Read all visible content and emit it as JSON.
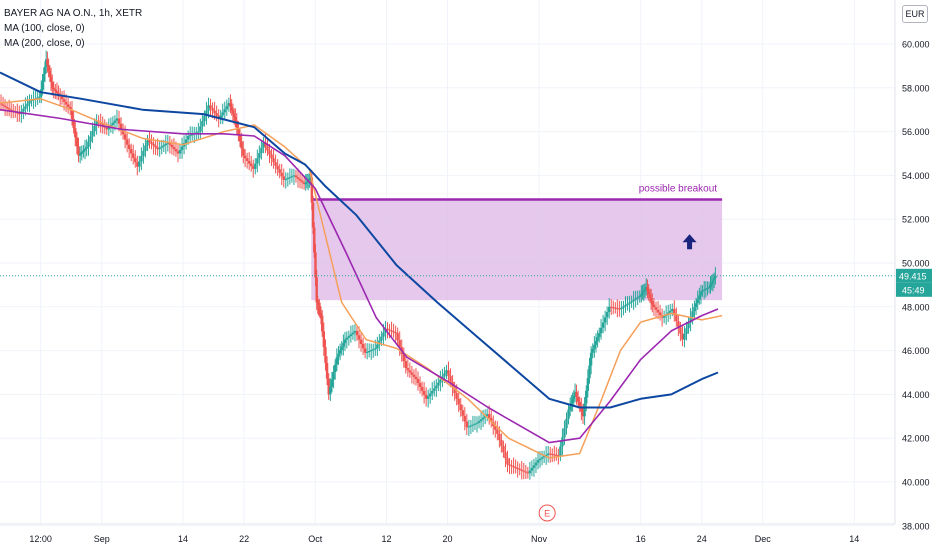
{
  "legend": {
    "symbol": "BAYER AG NA O.N., 1h, XETR",
    "ma100": "MA (100, close, 0)",
    "ma200": "MA (200, close, 0)"
  },
  "currency_button": "EUR",
  "chart_data": {
    "type": "line",
    "title": "BAYER AG NA O.N., 1h, XETR",
    "y_ticks": [
      "38.000",
      "40.000",
      "42.000",
      "44.000",
      "46.000",
      "48.000",
      "50.000",
      "52.000",
      "54.000",
      "56.000",
      "58.000",
      "60.000"
    ],
    "ylim": [
      38,
      61
    ],
    "x_ticks": [
      {
        "t": 2,
        "label": "12:00"
      },
      {
        "t": 5,
        "label": "Sep"
      },
      {
        "t": 9,
        "label": "14"
      },
      {
        "t": 12,
        "label": "22"
      },
      {
        "t": 15.5,
        "label": "Oct"
      },
      {
        "t": 19,
        "label": "12"
      },
      {
        "t": 22,
        "label": "20"
      },
      {
        "t": 26.5,
        "label": "Nov"
      },
      {
        "t": 31.5,
        "label": "16"
      },
      {
        "t": 34.5,
        "label": "24"
      },
      {
        "t": 37.5,
        "label": "Dec"
      },
      {
        "t": 42,
        "label": "14"
      }
    ],
    "xlim": [
      0,
      44
    ],
    "price": [
      [
        0,
        57.3
      ],
      [
        0.5,
        57.0
      ],
      [
        1,
        56.8
      ],
      [
        1.5,
        57.4
      ],
      [
        2,
        57.6
      ],
      [
        2.3,
        59.3
      ],
      [
        2.6,
        58.0
      ],
      [
        3,
        57.6
      ],
      [
        3.5,
        57.0
      ],
      [
        3.9,
        54.9
      ],
      [
        4.3,
        55.3
      ],
      [
        4.8,
        56.5
      ],
      [
        5.3,
        56.1
      ],
      [
        5.8,
        56.6
      ],
      [
        6.3,
        55.4
      ],
      [
        6.8,
        54.4
      ],
      [
        7.3,
        55.6
      ],
      [
        7.8,
        55.2
      ],
      [
        8.3,
        55.5
      ],
      [
        8.8,
        55.0
      ],
      [
        9.3,
        55.8
      ],
      [
        9.8,
        56.0
      ],
      [
        10.3,
        57.2
      ],
      [
        10.8,
        56.6
      ],
      [
        11.3,
        57.3
      ],
      [
        11.6,
        56.5
      ],
      [
        12.0,
        54.9
      ],
      [
        12.5,
        54.3
      ],
      [
        13.0,
        55.5
      ],
      [
        13.5,
        54.6
      ],
      [
        14.0,
        53.8
      ],
      [
        14.5,
        54.0
      ],
      [
        15.0,
        53.6
      ],
      [
        15.3,
        53.9
      ],
      [
        15.6,
        48.2
      ],
      [
        15.8,
        47.6
      ],
      [
        16.2,
        44.0
      ],
      [
        16.6,
        45.7
      ],
      [
        17.0,
        46.5
      ],
      [
        17.5,
        46.9
      ],
      [
        18.0,
        45.9
      ],
      [
        18.5,
        46.1
      ],
      [
        19.0,
        47.0
      ],
      [
        19.5,
        46.8
      ],
      [
        20.0,
        45.2
      ],
      [
        20.5,
        44.7
      ],
      [
        21.0,
        43.8
      ],
      [
        21.5,
        44.4
      ],
      [
        22.0,
        45.1
      ],
      [
        22.5,
        43.8
      ],
      [
        23.0,
        42.5
      ],
      [
        23.5,
        42.7
      ],
      [
        24.0,
        43.1
      ],
      [
        24.5,
        42.2
      ],
      [
        25.0,
        40.8
      ],
      [
        25.5,
        40.6
      ],
      [
        26.0,
        40.4
      ],
      [
        26.5,
        41.0
      ],
      [
        27.0,
        41.3
      ],
      [
        27.5,
        41.2
      ],
      [
        28.0,
        43.3
      ],
      [
        28.3,
        44.1
      ],
      [
        28.7,
        43.0
      ],
      [
        29.1,
        45.9
      ],
      [
        29.5,
        46.8
      ],
      [
        30.0,
        48.0
      ],
      [
        30.5,
        47.9
      ],
      [
        31.0,
        48.2
      ],
      [
        31.5,
        48.5
      ],
      [
        31.8,
        48.9
      ],
      [
        32.1,
        48.1
      ],
      [
        32.6,
        47.5
      ],
      [
        33.1,
        47.9
      ],
      [
        33.6,
        46.5
      ],
      [
        34.1,
        47.8
      ],
      [
        34.5,
        48.7
      ],
      [
        34.9,
        48.9
      ],
      [
        35.2,
        49.415
      ]
    ],
    "ma_orange": [
      [
        0,
        57.3
      ],
      [
        2,
        57.5
      ],
      [
        3.5,
        57.0
      ],
      [
        5,
        56.4
      ],
      [
        7,
        55.7
      ],
      [
        9,
        55.4
      ],
      [
        11,
        56.0
      ],
      [
        12.5,
        56.3
      ],
      [
        14,
        55.3
      ],
      [
        15.2,
        54.3
      ],
      [
        15.8,
        52.0
      ],
      [
        16.8,
        48.2
      ],
      [
        18,
        46.5
      ],
      [
        19.5,
        46.1
      ],
      [
        21,
        45.2
      ],
      [
        23,
        43.8
      ],
      [
        25,
        42.0
      ],
      [
        27.0,
        41.1
      ],
      [
        28.5,
        41.3
      ],
      [
        29.5,
        43.6
      ],
      [
        30.5,
        46.0
      ],
      [
        31.5,
        47.3
      ],
      [
        33.0,
        47.7
      ],
      [
        34.5,
        47.4
      ],
      [
        35.5,
        47.6
      ]
    ],
    "ma100_purple": [
      [
        0,
        57.0
      ],
      [
        3,
        56.6
      ],
      [
        6,
        56.1
      ],
      [
        9,
        55.9
      ],
      [
        11,
        55.9
      ],
      [
        12.5,
        55.8
      ],
      [
        14,
        54.9
      ],
      [
        15.5,
        53.4
      ],
      [
        17,
        50.5
      ],
      [
        18.5,
        47.5
      ],
      [
        20,
        45.7
      ],
      [
        22,
        44.6
      ],
      [
        24,
        43.4
      ],
      [
        25.5,
        42.6
      ],
      [
        27.0,
        41.8
      ],
      [
        28.5,
        42.0
      ],
      [
        30.0,
        43.7
      ],
      [
        31.5,
        45.6
      ],
      [
        33.0,
        46.9
      ],
      [
        34.5,
        47.6
      ],
      [
        35.3,
        47.9
      ]
    ],
    "ma200_navy": [
      [
        0,
        58.7
      ],
      [
        2,
        57.8
      ],
      [
        4,
        57.5
      ],
      [
        7,
        57.0
      ],
      [
        10,
        56.8
      ],
      [
        12.5,
        56.2
      ],
      [
        14.0,
        55.0
      ],
      [
        15.0,
        54.5
      ],
      [
        16.0,
        53.5
      ],
      [
        17.5,
        52.2
      ],
      [
        19.5,
        49.9
      ],
      [
        21.5,
        48.2
      ],
      [
        23.5,
        46.6
      ],
      [
        25.0,
        45.4
      ],
      [
        27.0,
        43.8
      ],
      [
        28.5,
        43.4
      ],
      [
        30.0,
        43.4
      ],
      [
        31.5,
        43.8
      ],
      [
        33.0,
        44.0
      ],
      [
        34.5,
        44.7
      ],
      [
        35.3,
        45.0
      ]
    ],
    "zone": {
      "t_start": 15.3,
      "t_end": 35.5,
      "y_low": 48.3,
      "y_high": 52.9
    },
    "annotation": "possible breakout",
    "last_price_label": "49.415",
    "countdown_label": "45:49",
    "event_marker": "E",
    "colors": {
      "price": "#26a69a",
      "price_down": "#ef5350",
      "ma_orange": "#f5a05a",
      "ma100": "#9c27b0",
      "ma200": "#0d47a1",
      "zone_fill": "#e1bee7",
      "zone_line": "#9c27b0",
      "arrow": "#1a237e"
    }
  }
}
